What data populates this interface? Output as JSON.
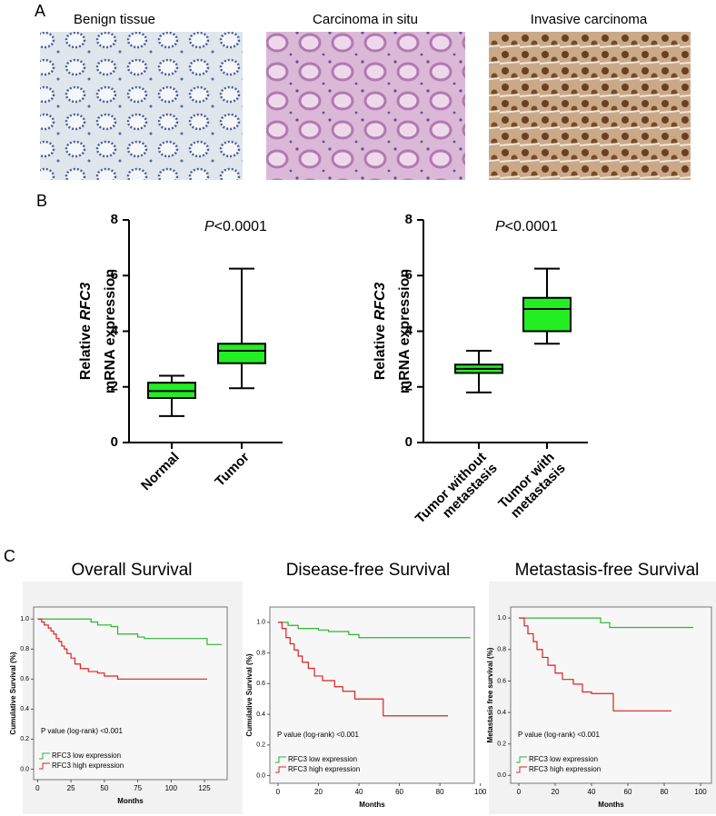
{
  "panels": {
    "a": "A",
    "b": "B",
    "c": "C"
  },
  "images": [
    "Benign tissue",
    "Carcinoma in situ",
    "Invasive carcinoma"
  ],
  "chart_data": [
    {
      "type": "box",
      "annotation": {
        "p": "P",
        "text": "<0.0001"
      },
      "y_label": {
        "line1": "Relative ",
        "gene": "RFC3",
        "line2": "mRNA expression"
      },
      "categories": [
        [
          "Normal"
        ],
        [
          "Tumor"
        ]
      ],
      "boxes": [
        {
          "min": 0.95,
          "q1": 1.6,
          "median": 1.85,
          "q3": 2.15,
          "max": 2.4
        },
        {
          "min": 1.95,
          "q1": 2.85,
          "median": 3.3,
          "q3": 3.55,
          "max": 6.25
        }
      ],
      "color": "#22ee22",
      "ylim": [
        0,
        8
      ],
      "yticks": [
        0,
        2,
        4,
        6,
        8
      ]
    },
    {
      "type": "box",
      "annotation": {
        "p": "P",
        "text": "<0.0001"
      },
      "y_label": {
        "line1": "Relative ",
        "gene": "RFC3",
        "line2": "mRNA expression"
      },
      "categories": [
        [
          "Tumor without",
          "metastasis"
        ],
        [
          "Tumor with",
          "metastasis"
        ]
      ],
      "boxes": [
        {
          "min": 1.8,
          "q1": 2.5,
          "median": 2.65,
          "q3": 2.8,
          "max": 3.3
        },
        {
          "min": 3.55,
          "q1": 4.0,
          "median": 4.8,
          "q3": 5.2,
          "max": 6.25
        }
      ],
      "color": "#22ee22",
      "ylim": [
        0,
        8
      ],
      "yticks": [
        0,
        2,
        4,
        6,
        8
      ]
    },
    {
      "type": "line",
      "title": "Overall Survival",
      "y_label": "Cumulative Survival (%)",
      "x_label": "Months",
      "annotation": "P value (log-rank) <0.001",
      "xlim": [
        -3,
        142
      ],
      "xticks": [
        0,
        25,
        50,
        75,
        100,
        125
      ],
      "ylim": [
        -0.07,
        1.08
      ],
      "yticks": [
        {
          "value": 0,
          "label": "0.0"
        },
        0.2,
        0.4,
        0.6,
        0.8,
        {
          "value": 1,
          "label": "1.0"
        }
      ],
      "series": [
        {
          "name": "RFC3 low expression",
          "color": "#2db52d",
          "x": [
            0,
            30,
            40,
            45,
            55,
            60,
            75,
            80,
            125,
            127,
            138
          ],
          "values": [
            1,
            1,
            0.98,
            0.96,
            0.95,
            0.9,
            0.88,
            0.87,
            0.87,
            0.83,
            0.83
          ]
        },
        {
          "name": "RFC3 high expression",
          "color": "#e02020",
          "x": [
            0,
            3,
            5,
            8,
            10,
            12,
            14,
            16,
            18,
            20,
            22,
            25,
            28,
            32,
            38,
            45,
            50,
            60,
            127
          ],
          "values": [
            1,
            0.98,
            0.96,
            0.94,
            0.92,
            0.9,
            0.87,
            0.85,
            0.82,
            0.8,
            0.77,
            0.74,
            0.7,
            0.67,
            0.65,
            0.64,
            0.62,
            0.6,
            0.6
          ]
        }
      ]
    },
    {
      "type": "line",
      "title": "Disease-free Survival",
      "y_label": "Cumulative Survival (%)",
      "x_label": "Months",
      "annotation": "P value (log-rank) <0.001",
      "xlim": [
        -4,
        97
      ],
      "xticks": [
        0,
        20,
        40,
        60,
        80,
        100
      ],
      "ylim": [
        -0.05,
        1.1
      ],
      "yticks": [
        {
          "value": 0,
          "label": "0.0"
        },
        0.2,
        0.4,
        0.6,
        0.8,
        {
          "value": 1,
          "label": "1.0"
        }
      ],
      "series": [
        {
          "name": "RFC3 low expression",
          "color": "#2db52d",
          "x": [
            0,
            5,
            10,
            20,
            25,
            35,
            40,
            95
          ],
          "values": [
            1,
            0.98,
            0.96,
            0.95,
            0.94,
            0.92,
            0.9,
            0.9
          ]
        },
        {
          "name": "RFC3 high expression",
          "color": "#e02020",
          "x": [
            0,
            2,
            4,
            6,
            8,
            10,
            12,
            15,
            18,
            22,
            28,
            32,
            38,
            45,
            52,
            84
          ],
          "values": [
            1,
            0.96,
            0.9,
            0.86,
            0.82,
            0.78,
            0.74,
            0.7,
            0.65,
            0.62,
            0.58,
            0.55,
            0.5,
            0.5,
            0.39,
            0.39
          ]
        }
      ]
    },
    {
      "type": "line",
      "title": "Metastasis-free Survival",
      "y_label": "Metastasis free survival (%)",
      "x_label": "Months",
      "annotation": "P value (log-rank) <0.001",
      "xlim": [
        -4.5,
        106
      ],
      "xticks": [
        0,
        20,
        40,
        60,
        80,
        100
      ],
      "ylim": [
        -0.05,
        1.07
      ],
      "yticks": [
        {
          "value": 0,
          "label": "0.0"
        },
        0.2,
        0.4,
        0.6,
        0.8,
        {
          "value": 1,
          "label": "1.0"
        }
      ],
      "series": [
        {
          "name": "RFC3 low expression",
          "color": "#2db52d",
          "x": [
            0,
            40,
            45,
            50,
            96
          ],
          "values": [
            1,
            1,
            0.97,
            0.94,
            0.94
          ]
        },
        {
          "name": "RFC3 high expression",
          "color": "#e02020",
          "x": [
            0,
            3,
            5,
            8,
            10,
            13,
            16,
            20,
            24,
            30,
            35,
            40,
            48,
            52,
            84
          ],
          "values": [
            1,
            0.95,
            0.9,
            0.85,
            0.8,
            0.75,
            0.7,
            0.65,
            0.61,
            0.58,
            0.53,
            0.52,
            0.52,
            0.41,
            0.41
          ]
        }
      ]
    }
  ]
}
